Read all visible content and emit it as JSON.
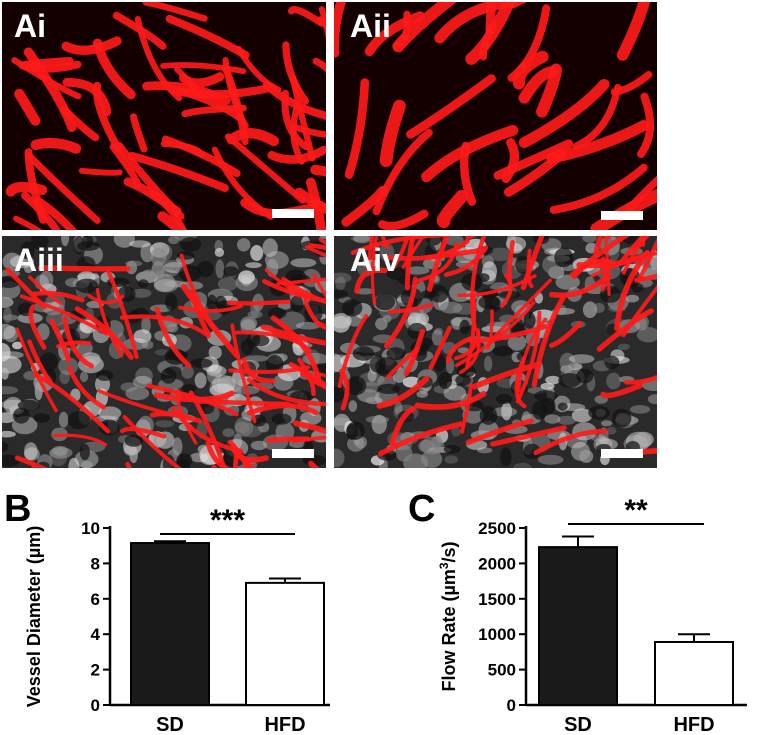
{
  "micrographs": [
    {
      "label": "Ai",
      "style": "red"
    },
    {
      "label": "Aii",
      "style": "red"
    },
    {
      "label": "Aiii",
      "style": "merge"
    },
    {
      "label": "Aiv",
      "style": "merge"
    }
  ],
  "colors": {
    "vessel": "#ff1a1a",
    "dark": "#1a0000",
    "bar_sd": "#1a1a1a",
    "bar_hfd": "#ffffff"
  },
  "panel_b_letter": "B",
  "panel_c_letter": "C",
  "chart_data": [
    {
      "type": "bar",
      "categories": [
        "SD",
        "HFD"
      ],
      "values": [
        9.15,
        6.9
      ],
      "errors": [
        0.1,
        0.25
      ],
      "ylabel": "Vessel Diameter (µm)",
      "ylim": [
        0,
        10
      ],
      "yticks": [
        "0",
        "2",
        "4",
        "6",
        "8",
        "10"
      ],
      "significance": "***"
    },
    {
      "type": "bar",
      "categories": [
        "SD",
        "HFD"
      ],
      "values": [
        2230,
        890
      ],
      "errors": [
        150,
        110
      ],
      "ylabel_main": "Flow Rate (µm",
      "ylabel_sup": "3",
      "ylabel_end": "/s)",
      "ylim": [
        0,
        2500
      ],
      "yticks": [
        "0",
        "500",
        "1000",
        "1500",
        "2000",
        "2500"
      ],
      "significance": "**"
    }
  ]
}
